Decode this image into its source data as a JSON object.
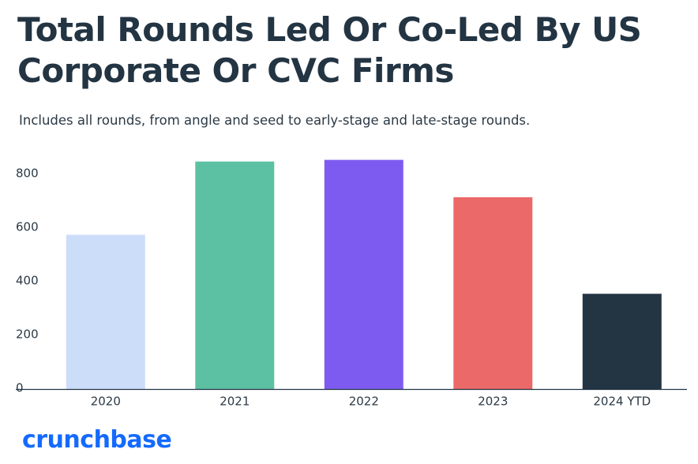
{
  "title": "Total Rounds Led Or Co-Led By US Corporate Or CVC Firms",
  "subtitle": "Includes all rounds, from angle and seed to early-stage and late-stage rounds.",
  "logo": "crunchbase",
  "chart_data": {
    "type": "bar",
    "title": "Total Rounds Led Or Co-Led By US Corporate Or CVC Firms",
    "subtitle": "Includes all rounds, from angle and seed to early-stage and late-stage rounds.",
    "categories": [
      "2020",
      "2021",
      "2022",
      "2023",
      "2024 YTD"
    ],
    "values": [
      575,
      848,
      854,
      715,
      355
    ],
    "colors": [
      "#ccddfa",
      "#5bc1a2",
      "#7e5bf0",
      "#ec6969",
      "#233443"
    ],
    "yticks": [
      0,
      200,
      400,
      600,
      800
    ],
    "ylim": [
      0,
      900
    ],
    "grid": false,
    "legend": "none"
  }
}
